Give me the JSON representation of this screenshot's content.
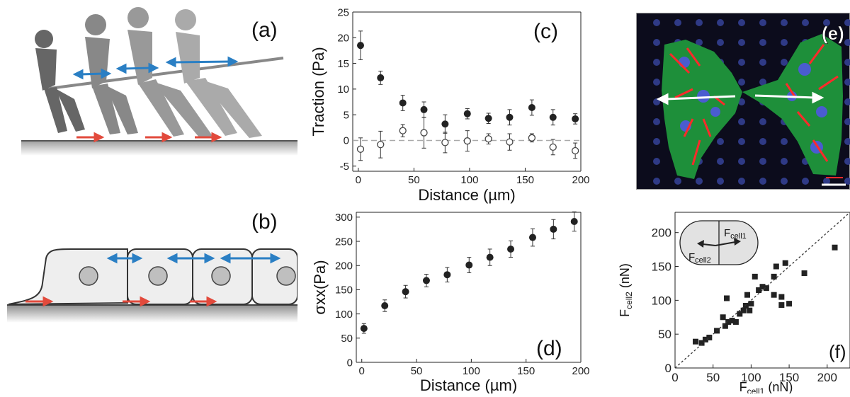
{
  "panels": {
    "a": {
      "label": "(a)"
    },
    "b": {
      "label": "(b)"
    },
    "e": {
      "label": "(e)"
    }
  },
  "chart_data": [
    {
      "id": "c",
      "type": "scatter",
      "panel_label": "(c)",
      "xlabel": "Distance (µm)",
      "ylabel": "Traction (Pa)",
      "xlim": [
        -5,
        200
      ],
      "ylim": [
        -6,
        25
      ],
      "xticks": [
        0,
        50,
        100,
        150,
        200
      ],
      "yticks": [
        -5,
        0,
        5,
        10,
        15,
        20,
        25
      ],
      "series": [
        {
          "marker": "filled",
          "x": [
            2,
            20,
            40,
            59,
            78,
            98,
            117,
            136,
            156,
            175,
            195
          ],
          "y": [
            18.5,
            12.2,
            7.3,
            6.0,
            3.2,
            5.2,
            4.3,
            4.5,
            6.4,
            4.5,
            4.2
          ],
          "err": [
            2.8,
            1.3,
            1.5,
            1.5,
            1.8,
            1.0,
            1.0,
            1.5,
            1.5,
            1.5,
            1.0
          ]
        },
        {
          "marker": "open",
          "x": [
            2,
            20,
            40,
            59,
            78,
            98,
            117,
            136,
            156,
            175,
            195
          ],
          "y": [
            -1.7,
            -0.8,
            1.9,
            1.5,
            -0.4,
            -0.1,
            0.3,
            -0.3,
            0.5,
            -1.3,
            -2.0
          ],
          "err": [
            2.2,
            2.6,
            1.2,
            3.0,
            2.0,
            2.0,
            1.0,
            1.6,
            0.8,
            1.5,
            1.5
          ]
        }
      ],
      "dashed_zero_line": true
    },
    {
      "id": "d",
      "type": "scatter",
      "panel_label": "(d)",
      "xlabel": "Distance (µm)",
      "ylabel": "σxx(Pa)",
      "xlim": [
        -5,
        200
      ],
      "ylim": [
        0,
        310
      ],
      "xticks": [
        0,
        50,
        100,
        150,
        200
      ],
      "yticks": [
        0,
        50,
        100,
        150,
        200,
        250,
        300
      ],
      "series": [
        {
          "marker": "filled",
          "x": [
            2,
            21,
            40,
            59,
            78,
            98,
            117,
            136,
            156,
            175,
            194
          ],
          "y": [
            70,
            117,
            146,
            169,
            181,
            201,
            217,
            234,
            258,
            275,
            291
          ],
          "err": [
            10,
            12,
            13,
            13,
            15,
            16,
            17,
            17,
            18,
            20,
            20
          ]
        }
      ]
    },
    {
      "id": "f",
      "type": "scatter",
      "panel_label": "(f)",
      "xlabel": "F",
      "xlabel_sub": "cell1",
      "xlabel_unit": "(nN)",
      "ylabel": "F",
      "ylabel_sub": "cell2",
      "ylabel_unit": "(nN)",
      "xlim": [
        0,
        230
      ],
      "ylim": [
        0,
        230
      ],
      "xticks": [
        0,
        50,
        100,
        150,
        200
      ],
      "yticks": [
        0,
        50,
        100,
        150,
        200
      ],
      "inset": {
        "label_1": "F",
        "label_1_sub": "cell1",
        "label_2": "F",
        "label_2_sub": "cell2"
      },
      "series": [
        {
          "marker": "square",
          "x": [
            27,
            35,
            40,
            45,
            55,
            63,
            66,
            68,
            70,
            75,
            80,
            85,
            90,
            93,
            95,
            98,
            100,
            105,
            110,
            115,
            120,
            130,
            130,
            133,
            140,
            140,
            145,
            150,
            170,
            210
          ],
          "y": [
            39,
            37,
            42,
            45,
            55,
            75,
            62,
            103,
            68,
            70,
            68,
            80,
            85,
            92,
            108,
            85,
            95,
            135,
            115,
            120,
            118,
            108,
            135,
            150,
            93,
            105,
            155,
            95,
            140,
            178
          ]
        }
      ]
    }
  ]
}
